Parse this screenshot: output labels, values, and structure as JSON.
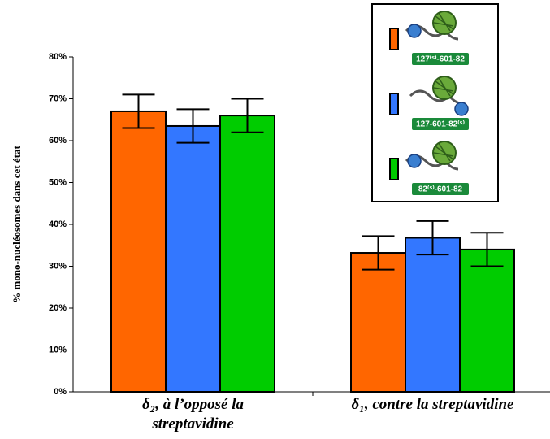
{
  "chart_data": {
    "type": "bar",
    "y_label": "% mono-nucléosomes dans cet état",
    "categories": [
      "δ₂, à l’opposé la streptavidine",
      "δ₁, contre la streptavidine"
    ],
    "series": [
      {
        "name": "127⁽ˢ⁾-601-82",
        "color": "#ff6600",
        "values": [
          67,
          33.2
        ],
        "errors": [
          4,
          4
        ]
      },
      {
        "name": "127-601-82⁽ˢ⁾",
        "color": "#3377ff",
        "values": [
          63.5,
          36.8
        ],
        "errors": [
          4,
          4
        ]
      },
      {
        "name": "82⁽ˢ⁾-601-82",
        "color": "#00cc00",
        "values": [
          66,
          34
        ],
        "errors": [
          4,
          4
        ]
      }
    ],
    "ylim": [
      0,
      80
    ],
    "yticks": [
      {
        "value": 0,
        "label": "0%"
      },
      {
        "value": 10,
        "label": "10%"
      },
      {
        "value": 20,
        "label": "20%"
      },
      {
        "value": 30,
        "label": "30%"
      },
      {
        "value": 40,
        "label": "40%"
      },
      {
        "value": 50,
        "label": "50%"
      },
      {
        "value": 60,
        "label": "60%"
      },
      {
        "value": 70,
        "label": "70%"
      },
      {
        "value": 80,
        "label": "80%"
      }
    ],
    "grid": false
  }
}
